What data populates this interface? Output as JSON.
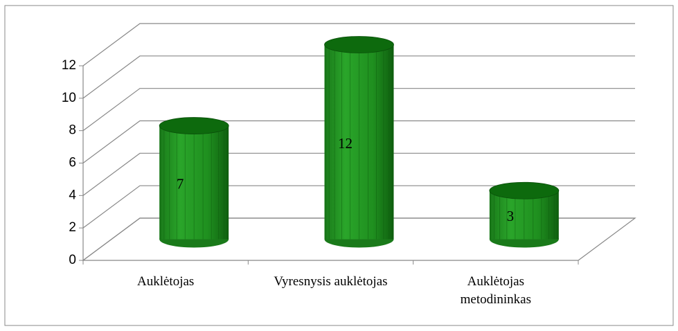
{
  "chart_data": {
    "type": "bar",
    "categories": [
      "Auklėtojas",
      "Vyresnysis auklėtojas",
      "Auklėtojas metodininkas"
    ],
    "values": [
      7,
      12,
      3
    ],
    "color": "#1e8a1e",
    "ylim": [
      0,
      12
    ],
    "yticks": [
      0,
      2,
      4,
      6,
      8,
      10,
      12
    ],
    "grid": true
  }
}
